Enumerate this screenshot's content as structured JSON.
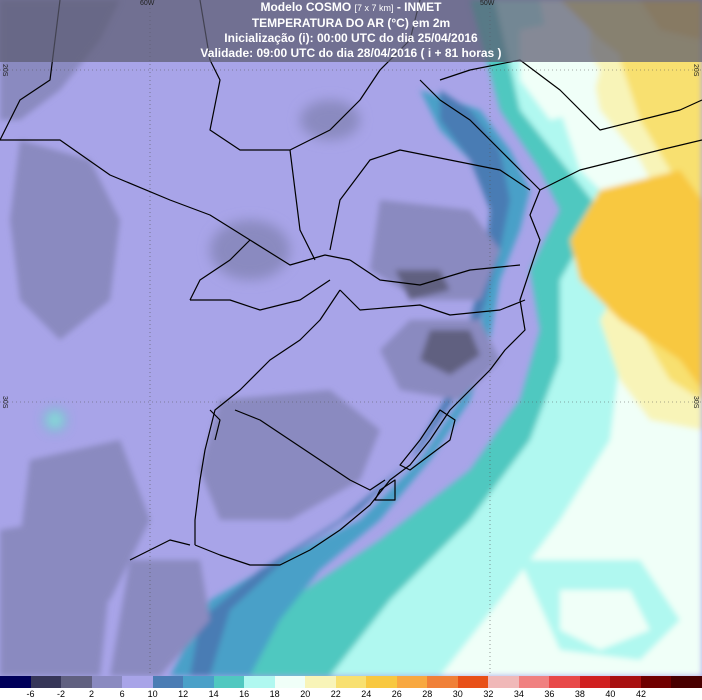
{
  "header": {
    "line1_main": "Modelo COSMO ",
    "line1_small": "[7 x 7 km]",
    "line1_tail": " - INMET",
    "line2": "TEMPERATURA DO AR (°C) em 2m",
    "line3": "Inicialização (i): 00:00 UTC do dia 25/04/2016",
    "line4": "Validade: 09:00 UTC do dia 28/04/2016 ( i + 81 horas )"
  },
  "ticks": {
    "top_left": "60W",
    "top_right": "50W",
    "left_upper": "20S",
    "left_lower": "30S",
    "right_upper": "20S",
    "right_lower": "30S"
  },
  "colorbar": {
    "colors": [
      "#00005a",
      "#363658",
      "#606080",
      "#8a8ac0",
      "#a8a4e8",
      "#4a7cb4",
      "#4aa0c8",
      "#50c8c0",
      "#b0f8f0",
      "#f0fff8",
      "#f8f4b8",
      "#f8e070",
      "#f8c840",
      "#f8a840",
      "#f08038",
      "#e85018",
      "#f0b8b8",
      "#f08080",
      "#e84848",
      "#d02020",
      "#a81010",
      "#700000",
      "#480000"
    ],
    "labels": [
      "-6",
      "-2",
      "2",
      "6",
      "10",
      "12",
      "14",
      "16",
      "18",
      "20",
      "22",
      "24",
      "26",
      "28",
      "30",
      "32",
      "34",
      "36",
      "38",
      "40",
      "42"
    ]
  }
}
